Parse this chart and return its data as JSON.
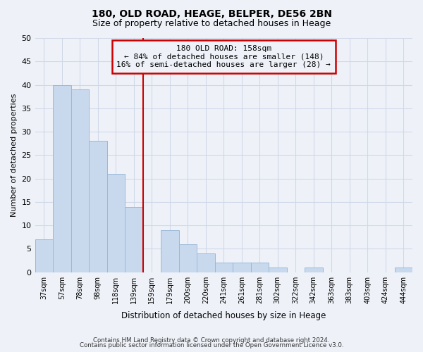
{
  "title": "180, OLD ROAD, HEAGE, BELPER, DE56 2BN",
  "subtitle": "Size of property relative to detached houses in Heage",
  "xlabel": "Distribution of detached houses by size in Heage",
  "ylabel": "Number of detached properties",
  "bar_labels": [
    "37sqm",
    "57sqm",
    "78sqm",
    "98sqm",
    "118sqm",
    "139sqm",
    "159sqm",
    "179sqm",
    "200sqm",
    "220sqm",
    "241sqm",
    "261sqm",
    "281sqm",
    "302sqm",
    "322sqm",
    "342sqm",
    "363sqm",
    "383sqm",
    "403sqm",
    "424sqm",
    "444sqm"
  ],
  "bar_values": [
    7,
    40,
    39,
    28,
    21,
    14,
    0,
    9,
    6,
    4,
    2,
    2,
    2,
    1,
    0,
    1,
    0,
    0,
    0,
    0,
    1
  ],
  "bar_color": "#c8d9ee",
  "bar_edge_color": "#9ab8d8",
  "reference_line_index": 6,
  "reference_line_color": "#cc0000",
  "annotation_title": "180 OLD ROAD: 158sqm",
  "annotation_line1": "← 84% of detached houses are smaller (148)",
  "annotation_line2": "16% of semi-detached houses are larger (28) →",
  "annotation_box_edge_color": "#cc0000",
  "ylim": [
    0,
    50
  ],
  "yticks": [
    0,
    5,
    10,
    15,
    20,
    25,
    30,
    35,
    40,
    45,
    50
  ],
  "grid_color": "#d0d8e8",
  "background_color": "#eef2f8",
  "footer_line1": "Contains HM Land Registry data © Crown copyright and database right 2024.",
  "footer_line2": "Contains public sector information licensed under the Open Government Licence v3.0."
}
